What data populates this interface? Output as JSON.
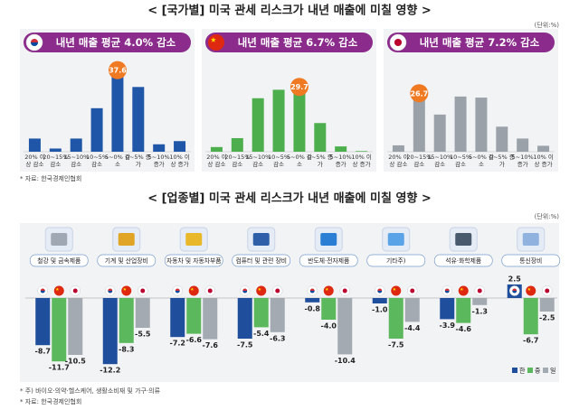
{
  "section1": {
    "title": "< [국가별] 미국 관세 리스크가 내년 매출에 미칠 영향 >",
    "unit": "(단위:%)",
    "source": "* 자료: 한국경제인협회"
  },
  "section2": {
    "title": "< [업종별] 미국 관세 리스크가 내년 매출에 미칠 영향 >",
    "unit": "(단위:%)",
    "footnote": "* 주) 바이오·의약·헬스케어, 생활소비재 및 가구·의류",
    "source": "* 자료: 한국경제인협회"
  },
  "chart_data": [
    {
      "type": "bar",
      "title": "내년 매출 평균 4.0% 감소",
      "categories": [
        "20% 이상 감소",
        "20~15% 감소",
        "15~10% 감소",
        "10~5% 감소",
        "5~0% 감소",
        "0~5% 증가",
        "5~10% 증가",
        "10% 이상 증가"
      ],
      "values": [
        6.2,
        1.5,
        6.2,
        20.5,
        37.6,
        30.5,
        3.5,
        5.0
      ],
      "value_labels": [
        null,
        null,
        null,
        null,
        "37.6",
        null,
        null,
        null
      ],
      "color": "#1f56a8"
    },
    {
      "type": "bar",
      "title": "내년 매출 평균 6.7% 감소",
      "categories": [
        "20% 이상 감소",
        "20~15% 감소",
        "15~10% 감소",
        "10~5% 감소",
        "5~0% 감소",
        "0~5% 증가",
        "5~10% 증가",
        "10% 이상 증가"
      ],
      "values": [
        2.2,
        6.4,
        25.2,
        29.2,
        29.7,
        13.5,
        2.5,
        0.3
      ],
      "value_labels": [
        null,
        null,
        null,
        null,
        "29.7",
        null,
        null,
        null
      ],
      "color": "#4cae4c"
    },
    {
      "type": "bar",
      "title": "내년 매출 평균 7.2% 감소",
      "categories": [
        "20% 이상 감소",
        "20~15% 감소",
        "15~10% 감소",
        "10~5% 감소",
        "5~0% 감소",
        "0~5% 증가",
        "5~10% 증가",
        "10% 이상 증가"
      ],
      "values": [
        3.0,
        26.7,
        17.5,
        26.0,
        25.5,
        11.8,
        6.2,
        2.8
      ],
      "value_labels": [
        null,
        "26.7",
        null,
        null,
        null,
        null,
        null,
        null
      ],
      "color": "#9aa1a9"
    },
    {
      "type": "grouped_bar",
      "categories": [
        "철강 및 금속제품",
        "기계 및 산업장비",
        "자동차 및 자동차부품",
        "컴퓨터 및 관련 장비",
        "반도체·전자제품",
        "기타주)",
        "석유·화학제품",
        "통신장비"
      ],
      "series": [
        {
          "name": "한",
          "color": "#1f4e9c",
          "values": [
            -8.7,
            -12.2,
            -7.2,
            -7.5,
            -0.8,
            -1.0,
            -3.9,
            2.5
          ],
          "value_labels": [
            "-8.7",
            "-12.2",
            "-7.2",
            "-7.5",
            "-0.8",
            "-1.0",
            "-3.9",
            "2.5"
          ]
        },
        {
          "name": "중",
          "color": "#5cb85c",
          "values": [
            -11.7,
            -8.3,
            -6.6,
            -5.4,
            -4.0,
            -7.5,
            -4.6,
            -6.7
          ],
          "value_labels": [
            "-11.7",
            "-8.3",
            "-6.6",
            "-5.4",
            "-4.0",
            "-7.5",
            "-4.6",
            "-6.7"
          ]
        },
        {
          "name": "일",
          "color": "#a3aab2",
          "values": [
            -10.5,
            -5.5,
            -7.6,
            -6.3,
            -10.4,
            -4.4,
            -1.3,
            -2.5
          ],
          "value_labels": [
            "-10.5",
            "-5.5",
            "-7.6",
            "-6.3",
            "-10.4",
            "-4.4",
            "-1.3",
            "-2.5"
          ]
        }
      ]
    }
  ]
}
